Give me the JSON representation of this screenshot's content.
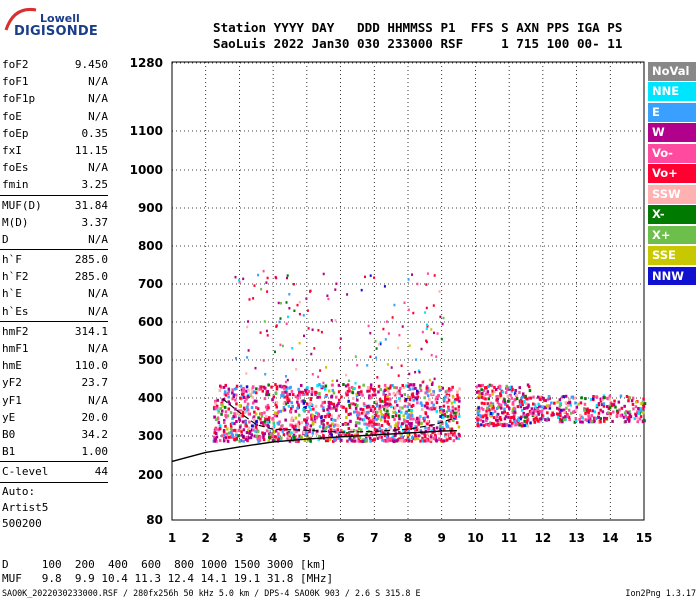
{
  "logo": {
    "line1": "Lowell",
    "line2": "DIGISONDE"
  },
  "header": {
    "line1": "Station YYYY DAY   DDD HHMMSS P1  FFS S AXN PPS IGA PS",
    "line2": "SaoLuis 2022 Jan30 030 233000 RSF     1 715 100 00- 11"
  },
  "params": {
    "group1": [
      {
        "label": "foF2",
        "value": "9.450"
      },
      {
        "label": "foF1",
        "value": "N/A"
      },
      {
        "label": "foF1p",
        "value": "N/A"
      },
      {
        "label": "foE",
        "value": "N/A"
      },
      {
        "label": "foEp",
        "value": "0.35"
      },
      {
        "label": "fxI",
        "value": "11.15"
      },
      {
        "label": "foEs",
        "value": "N/A"
      },
      {
        "label": "fmin",
        "value": "3.25"
      }
    ],
    "group2": [
      {
        "label": "MUF(D)",
        "value": "31.84"
      },
      {
        "label": "M(D)",
        "value": "3.37"
      },
      {
        "label": "D",
        "value": "N/A"
      }
    ],
    "group3": [
      {
        "label": "h`F",
        "value": "285.0"
      },
      {
        "label": "h`F2",
        "value": "285.0"
      },
      {
        "label": "h`E",
        "value": "N/A"
      },
      {
        "label": "h`Es",
        "value": "N/A"
      }
    ],
    "group4": [
      {
        "label": "hmF2",
        "value": "314.1"
      },
      {
        "label": "hmF1",
        "value": "N/A"
      },
      {
        "label": "hmE",
        "value": "110.0"
      },
      {
        "label": "yF2",
        "value": "23.7"
      },
      {
        "label": "yF1",
        "value": "N/A"
      },
      {
        "label": "yE",
        "value": "20.0"
      },
      {
        "label": "B0",
        "value": "34.2"
      },
      {
        "label": "B1",
        "value": "1.00"
      }
    ],
    "clevel": {
      "label": "C-level",
      "value": "44"
    },
    "auto": [
      "Auto:",
      "Artist5",
      "500200"
    ]
  },
  "legend": [
    {
      "label": "NoVal",
      "color": "#888888"
    },
    {
      "label": "NNE",
      "color": "#00e5ff"
    },
    {
      "label": "E",
      "color": "#3aa0ff"
    },
    {
      "label": "W",
      "color": "#b0008c"
    },
    {
      "label": "Vo-",
      "color": "#ff4aa0"
    },
    {
      "label": "Vo+",
      "color": "#ff0030"
    },
    {
      "label": "SSW",
      "color": "#ffb0b0"
    },
    {
      "label": "X-",
      "color": "#007a00"
    },
    {
      "label": "X+",
      "color": "#6cbf4a"
    },
    {
      "label": "SSE",
      "color": "#c8c800"
    },
    {
      "label": "NNW",
      "color": "#1010d0"
    }
  ],
  "distance_row": "D     100  200  400  600  800 1000 1500 3000 [km]",
  "muf_row": "MUF   9.8  9.9 10.4 11.3 12.4 14.1 19.1 31.8 [MHz]",
  "footer": "SAO0K_2022030233000.RSF / 280fx256h 50 kHz 5.0 km / DPS-4 SAO0K 903 / 2.6 S 315.8 E",
  "footer_right": "Ion2Png 1.3.17",
  "chart_data": {
    "type": "scatter",
    "title": "",
    "xlabel": "",
    "ylabel": "",
    "x_ticks": [
      1,
      2,
      3,
      4,
      5,
      6,
      7,
      8,
      9,
      10,
      11,
      12,
      13,
      14,
      15
    ],
    "y_ticks": [
      80,
      200,
      300,
      400,
      500,
      600,
      700,
      800,
      900,
      1000,
      1100,
      1280
    ],
    "xlim": [
      1,
      15
    ],
    "ylim": [
      80,
      1280
    ],
    "grid": true,
    "y_scale": "nonlinear (virtual height, km)",
    "trace_points": [
      {
        "x": 2.5,
        "y": 398
      },
      {
        "x": 3.0,
        "y": 362
      },
      {
        "x": 3.5,
        "y": 330
      },
      {
        "x": 4.0,
        "y": 318
      },
      {
        "x": 5.0,
        "y": 315
      },
      {
        "x": 6.0,
        "y": 310
      },
      {
        "x": 7.0,
        "y": 312
      },
      {
        "x": 8.0,
        "y": 318
      },
      {
        "x": 8.8,
        "y": 330
      },
      {
        "x": 9.3,
        "y": 345
      }
    ],
    "profile_points": [
      {
        "x": 1.0,
        "y": 235
      },
      {
        "x": 2.0,
        "y": 258
      },
      {
        "x": 3.0,
        "y": 272
      },
      {
        "x": 4.0,
        "y": 285
      },
      {
        "x": 5.0,
        "y": 292
      },
      {
        "x": 6.0,
        "y": 298
      },
      {
        "x": 7.0,
        "y": 303
      },
      {
        "x": 8.0,
        "y": 308
      },
      {
        "x": 9.0,
        "y": 313
      },
      {
        "x": 9.45,
        "y": 314
      }
    ],
    "echo_regions": [
      {
        "x_min": 2.2,
        "x_max": 9.5,
        "y_min": 290,
        "y_max": 440,
        "density": "high"
      },
      {
        "x_min": 10.0,
        "x_max": 11.6,
        "y_min": 330,
        "y_max": 440,
        "density": "medium"
      },
      {
        "x_min": 11.6,
        "x_max": 15.0,
        "y_min": 340,
        "y_max": 410,
        "density": "low"
      }
    ]
  }
}
